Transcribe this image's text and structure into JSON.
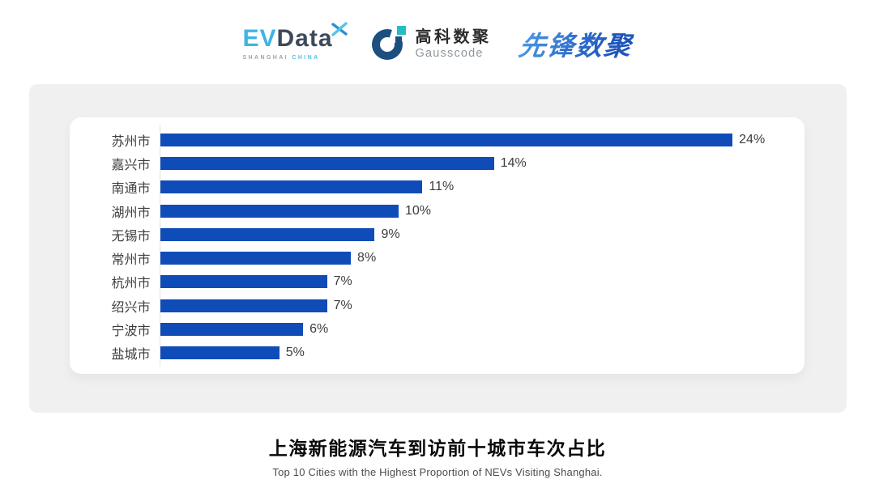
{
  "logos": {
    "evdata": {
      "ev": "EV",
      "data": "Data",
      "sub_left": "SHANGHAI",
      "sub_right": "CHINA"
    },
    "gausscode": {
      "cn": "高科数聚",
      "en": "Gausscode"
    },
    "xianfeng": {
      "text": "先锋数聚"
    }
  },
  "chart_data": {
    "type": "bar",
    "orientation": "horizontal",
    "title": "上海新能源汽车到访前十城市车次占比",
    "subtitle": "Top 10 Cities with the Highest Proportion of  NEVs Visiting Shanghai.",
    "categories": [
      "苏州市",
      "嘉兴市",
      "南通市",
      "湖州市",
      "无锡市",
      "常州市",
      "杭州市",
      "绍兴市",
      "宁波市",
      "盐城市"
    ],
    "values": [
      24,
      14,
      11,
      10,
      9,
      8,
      7,
      7,
      6,
      5
    ],
    "value_labels": [
      "24%",
      "14%",
      "11%",
      "10%",
      "9%",
      "8%",
      "7%",
      "7%",
      "6%",
      "5%"
    ],
    "xlim": [
      0,
      27
    ],
    "grid": false,
    "legend": false,
    "bar_color": "#0F4CB8",
    "axis_line_color": "#E2E2E2",
    "label_color": "#3D3D3D"
  },
  "colors": {
    "panel_bg": "#F0F0F1",
    "card_bg": "#FFFFFF",
    "evdata_light_blue": "#3FB4E5",
    "evdata_dark": "#3D4A5C",
    "gausscode_dark_blue": "#1C4E7F",
    "gausscode_teal": "#25BCC3",
    "xianfeng_blue_start": "#4A97E4",
    "xianfeng_blue_end": "#1D55BC"
  }
}
